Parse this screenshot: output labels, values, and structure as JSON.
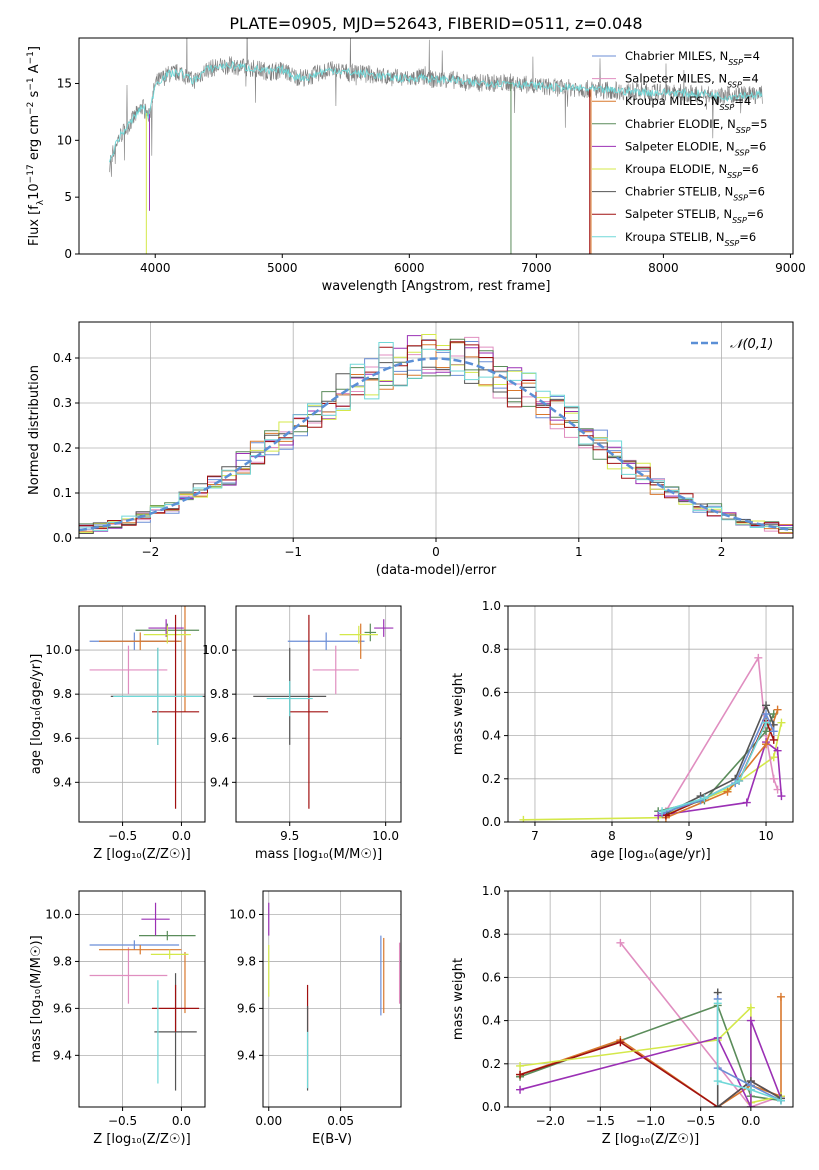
{
  "figure_title": "PLATE=0905, MJD=52643, FIBERID=0511, z=0.048",
  "colors": {
    "chabrier_miles": "#6b8ed6",
    "salpeter_miles": "#e08ec0",
    "kroupa_miles": "#d9782d",
    "chabrier_elodie": "#5a8c5a",
    "salpeter_elodie": "#9b30b5",
    "kroupa_elodie": "#d4e84a",
    "chabrier_stelib": "#555555",
    "salpeter_stelib": "#a01010",
    "kroupa_stelib": "#70d8d8",
    "gauss": "#5b8fd6",
    "grid": "#b0b0b0"
  },
  "chart_data": [
    {
      "id": "spectrum",
      "type": "line",
      "xlabel": "wavelength [Angstrom, rest frame]",
      "ylabel_parts": [
        "Flux [f",
        "λ",
        "10",
        "−17",
        " erg cm",
        "−2",
        " s",
        "−1",
        " A",
        "−1",
        "]"
      ],
      "xlim": [
        3400,
        9020
      ],
      "ylim": [
        0,
        19
      ],
      "xticks": [
        4000,
        5000,
        6000,
        7000,
        8000,
        9000
      ],
      "yticks": [
        0,
        5,
        10,
        15
      ],
      "legend_position": "right",
      "legend": [
        {
          "name": "Chabrier MILES, N",
          "sub": "SSP",
          "tail": "=4",
          "color_key": "chabrier_miles"
        },
        {
          "name": "Salpeter MILES, N",
          "sub": "SSP",
          "tail": "=4",
          "color_key": "salpeter_miles"
        },
        {
          "name": "Kroupa MILES, N",
          "sub": "SSP",
          "tail": "=4",
          "color_key": "kroupa_miles"
        },
        {
          "name": "Chabrier ELODIE, N",
          "sub": "SSP",
          "tail": "=5",
          "color_key": "chabrier_elodie"
        },
        {
          "name": "Salpeter ELODIE, N",
          "sub": "SSP",
          "tail": "=6",
          "color_key": "salpeter_elodie"
        },
        {
          "name": "Kroupa ELODIE, N",
          "sub": "SSP",
          "tail": "=6",
          "color_key": "kroupa_elodie"
        },
        {
          "name": "Chabrier STELIB, N",
          "sub": "SSP",
          "tail": "=6",
          "color_key": "chabrier_stelib"
        },
        {
          "name": "Salpeter STELIB, N",
          "sub": "SSP",
          "tail": "=6",
          "color_key": "salpeter_stelib"
        },
        {
          "name": "Kroupa STELIB, N",
          "sub": "SSP",
          "tail": "=6",
          "color_key": "kroupa_stelib"
        }
      ],
      "data_continuum": [
        [
          3640,
          8.0
        ],
        [
          3700,
          10.0
        ],
        [
          3800,
          11.5
        ],
        [
          3900,
          13.0
        ],
        [
          3950,
          12.0
        ],
        [
          4000,
          15.0
        ],
        [
          4100,
          15.8
        ],
        [
          4200,
          16.0
        ],
        [
          4300,
          15.2
        ],
        [
          4400,
          16.2
        ],
        [
          4500,
          16.5
        ],
        [
          4600,
          16.6
        ],
        [
          4700,
          16.4
        ],
        [
          4800,
          16.3
        ],
        [
          4900,
          16.0
        ],
        [
          5000,
          16.2
        ],
        [
          5100,
          15.6
        ],
        [
          5200,
          15.5
        ],
        [
          5300,
          16.0
        ],
        [
          5400,
          16.2
        ],
        [
          5500,
          16.0
        ],
        [
          5600,
          15.9
        ],
        [
          5700,
          15.8
        ],
        [
          5800,
          15.6
        ],
        [
          5900,
          15.5
        ],
        [
          6000,
          15.4
        ],
        [
          6100,
          15.6
        ],
        [
          6200,
          15.3
        ],
        [
          6300,
          15.4
        ],
        [
          6400,
          15.2
        ],
        [
          6500,
          15.0
        ],
        [
          6600,
          15.1
        ],
        [
          6700,
          15.0
        ],
        [
          6800,
          15.1
        ],
        [
          6900,
          14.9
        ],
        [
          7000,
          14.8
        ],
        [
          7100,
          14.7
        ],
        [
          7200,
          14.6
        ],
        [
          7300,
          14.6
        ],
        [
          7400,
          14.5
        ],
        [
          7500,
          14.4
        ],
        [
          7600,
          14.4
        ],
        [
          7700,
          14.3
        ],
        [
          7800,
          14.3
        ],
        [
          7900,
          14.2
        ],
        [
          8000,
          14.2
        ],
        [
          8100,
          14.2
        ],
        [
          8200,
          14.1
        ],
        [
          8300,
          14.1
        ],
        [
          8400,
          14.0
        ],
        [
          8500,
          13.8
        ],
        [
          8600,
          14.0
        ],
        [
          8700,
          14.0
        ],
        [
          8780,
          14.0
        ]
      ],
      "data_ends": {
        "kroupa_elodie": 3930,
        "salpeter_elodie": 3955,
        "chabrier_elodie": 6800,
        "salpeter_stelib": 7420,
        "kroupa_miles": 7430
      }
    },
    {
      "id": "residual_hist",
      "type": "line",
      "xlabel": "(data-model)/error",
      "ylabel": "Normed distribution",
      "xlim": [
        -2.5,
        2.5
      ],
      "ylim": [
        0,
        0.48
      ],
      "xticks": [
        -2,
        -1,
        0,
        1,
        2
      ],
      "yticks": [
        0.0,
        0.1,
        0.2,
        0.3,
        0.4
      ],
      "legend_position": "top-right",
      "gauss_label": "𝒩(0,1)",
      "bin_width": 0.1,
      "bin_start": -2.5
    },
    {
      "id": "age_vs_Z",
      "type": "scatter",
      "xlabel": "Z [log₁₀(Z/Z☉)]",
      "ylabel": "age  [log₁₀(age/yr)]",
      "xlim": [
        -0.87,
        0.2
      ],
      "ylim": [
        9.22,
        10.2
      ],
      "xticks": [
        -0.5,
        0.0
      ],
      "yticks": [
        9.4,
        9.6,
        9.8,
        10.0
      ],
      "points": [
        {
          "color_key": "chabrier_miles",
          "x": -0.4,
          "xerr": 0.38,
          "y": 10.04,
          "yerr": 0.04
        },
        {
          "color_key": "salpeter_miles",
          "x": -0.45,
          "xerr": 0.33,
          "y": 9.91,
          "yerr": 0.11
        },
        {
          "color_key": "kroupa_miles",
          "x": -0.35,
          "xerr": 0.35,
          "y": 10.04,
          "yerr": 0.04
        },
        {
          "color_key": "kroupa_miles",
          "x": 0.03,
          "xerr": 0.0,
          "y": 9.98,
          "yerr": 0.26
        },
        {
          "color_key": "chabrier_elodie",
          "x": -0.12,
          "xerr": 0.27,
          "y": 10.09,
          "yerr": 0.03
        },
        {
          "color_key": "salpeter_elodie",
          "x": -0.13,
          "xerr": 0.15,
          "y": 10.1,
          "yerr": 0.04
        },
        {
          "color_key": "kroupa_elodie",
          "x": -0.12,
          "xerr": 0.2,
          "y": 10.07,
          "yerr": 0.04
        },
        {
          "color_key": "chabrier_stelib",
          "x": -0.2,
          "xerr": 0.4,
          "y": 9.79,
          "yerr": 0.22
        },
        {
          "color_key": "salpeter_stelib",
          "x": -0.05,
          "xerr": 0.2,
          "y": 9.72,
          "yerr": 0.44
        },
        {
          "color_key": "kroupa_stelib",
          "x": -0.2,
          "xerr": 0.38,
          "y": 9.79,
          "yerr": 0.22
        }
      ]
    },
    {
      "id": "age_vs_mass",
      "type": "scatter",
      "xlabel": "mass [log₁₀(M/M☉)]",
      "ylabel": "",
      "xlim": [
        9.22,
        10.08
      ],
      "ylim": [
        9.22,
        10.2
      ],
      "xticks": [
        9.5,
        10.0
      ],
      "yticks": [
        9.4,
        9.6,
        9.8,
        10.0
      ],
      "points": [
        {
          "color_key": "chabrier_miles",
          "x": 9.69,
          "xerr": 0.2,
          "y": 10.04,
          "yerr": 0.04
        },
        {
          "color_key": "salpeter_miles",
          "x": 9.74,
          "xerr": 0.12,
          "y": 9.91,
          "yerr": 0.11
        },
        {
          "color_key": "kroupa_miles",
          "x": 9.87,
          "xerr": 0.0,
          "y": 10.04,
          "yerr": 0.08
        },
        {
          "color_key": "chabrier_elodie",
          "x": 9.92,
          "xerr": 0.03,
          "y": 10.08,
          "yerr": 0.04
        },
        {
          "color_key": "salpeter_elodie",
          "x": 9.99,
          "xerr": 0.05,
          "y": 10.1,
          "yerr": 0.04
        },
        {
          "color_key": "kroupa_elodie",
          "x": 9.86,
          "xerr": 0.1,
          "y": 10.07,
          "yerr": 0.04
        },
        {
          "color_key": "chabrier_stelib",
          "x": 9.5,
          "xerr": 0.19,
          "y": 9.79,
          "yerr": 0.22
        },
        {
          "color_key": "salpeter_stelib",
          "x": 9.6,
          "xerr": 0.1,
          "y": 9.72,
          "yerr": 0.44
        },
        {
          "color_key": "kroupa_stelib",
          "x": 9.5,
          "xerr": 0.12,
          "y": 9.78,
          "yerr": 0.08
        }
      ]
    },
    {
      "id": "weight_vs_age",
      "type": "line",
      "xlabel": "age  [log₁₀(age/yr)]",
      "ylabel": "mass weight",
      "xlim": [
        6.65,
        10.35
      ],
      "ylim": [
        0,
        1.0
      ],
      "xticks": [
        7,
        8,
        9,
        10
      ],
      "yticks": [
        0.0,
        0.2,
        0.4,
        0.6,
        0.8,
        1.0
      ],
      "series": [
        {
          "color_key": "kroupa_elodie",
          "x": [
            6.85,
            8.6,
            9.5,
            10.1,
            10.2
          ],
          "y": [
            0.01,
            0.02,
            0.15,
            0.3,
            0.46
          ]
        },
        {
          "color_key": "salpeter_miles",
          "x": [
            8.7,
            9.9,
            10.0,
            10.1,
            10.15
          ],
          "y": [
            0.05,
            0.76,
            0.4,
            0.2,
            0.15
          ]
        },
        {
          "color_key": "chabrier_elodie",
          "x": [
            8.6,
            9.2,
            10.0,
            10.1
          ],
          "y": [
            0.05,
            0.1,
            0.42,
            0.5
          ]
        },
        {
          "color_key": "salpeter_elodie",
          "x": [
            8.6,
            9.75,
            10.0,
            10.15,
            10.2
          ],
          "y": [
            0.03,
            0.09,
            0.37,
            0.33,
            0.12
          ]
        },
        {
          "color_key": "kroupa_miles",
          "x": [
            8.7,
            9.5,
            10.0,
            10.15
          ],
          "y": [
            0.02,
            0.14,
            0.36,
            0.52
          ]
        },
        {
          "color_key": "chabrier_stelib",
          "x": [
            8.7,
            9.15,
            9.6,
            10.0,
            10.1
          ],
          "y": [
            0.04,
            0.12,
            0.2,
            0.54,
            0.45
          ]
        },
        {
          "color_key": "salpeter_stelib",
          "x": [
            8.7,
            9.2,
            9.65,
            10.0,
            10.1
          ],
          "y": [
            0.03,
            0.11,
            0.19,
            0.47,
            0.38
          ]
        },
        {
          "color_key": "chabrier_miles",
          "x": [
            8.65,
            9.15,
            9.6,
            10.0,
            10.1
          ],
          "y": [
            0.04,
            0.1,
            0.18,
            0.5,
            0.42
          ]
        },
        {
          "color_key": "kroupa_stelib",
          "x": [
            8.65,
            9.2,
            9.65,
            10.0
          ],
          "y": [
            0.05,
            0.11,
            0.19,
            0.46
          ]
        }
      ]
    },
    {
      "id": "mass_vs_Z",
      "type": "scatter",
      "xlabel": "Z [log₁₀(Z/Z☉)]",
      "ylabel": "mass [log₁₀(M/M☉)]",
      "xlim": [
        -0.87,
        0.2
      ],
      "ylim": [
        9.18,
        10.1
      ],
      "xticks": [
        -0.5,
        0.0
      ],
      "yticks": [
        9.4,
        9.6,
        9.8,
        10.0
      ],
      "points": [
        {
          "color_key": "chabrier_miles",
          "x": -0.4,
          "xerr": 0.38,
          "y": 9.87,
          "yerr": 0.02
        },
        {
          "color_key": "salpeter_miles",
          "x": -0.45,
          "xerr": 0.33,
          "y": 9.74,
          "yerr": 0.12
        },
        {
          "color_key": "kroupa_miles",
          "x": -0.35,
          "xerr": 0.35,
          "y": 9.85,
          "yerr": 0.02
        },
        {
          "color_key": "kroupa_miles",
          "x": 0.03,
          "xerr": 0.0,
          "y": 9.71,
          "yerr": 0.13
        },
        {
          "color_key": "chabrier_elodie",
          "x": -0.12,
          "xerr": 0.24,
          "y": 9.91,
          "yerr": 0.02
        },
        {
          "color_key": "salpeter_elodie",
          "x": -0.22,
          "xerr": 0.12,
          "y": 9.98,
          "yerr": 0.07
        },
        {
          "color_key": "kroupa_elodie",
          "x": -0.1,
          "xerr": 0.16,
          "y": 9.83,
          "yerr": 0.02
        },
        {
          "color_key": "chabrier_stelib",
          "x": -0.05,
          "xerr": 0.18,
          "y": 9.5,
          "yerr": 0.25
        },
        {
          "color_key": "salpeter_stelib",
          "x": -0.05,
          "xerr": 0.2,
          "y": 9.6,
          "yerr": 0.1
        },
        {
          "color_key": "kroupa_stelib",
          "x": -0.2,
          "xerr": 0.0,
          "y": 9.5,
          "yerr": 0.22
        }
      ]
    },
    {
      "id": "mass_vs_EBV",
      "type": "scatter",
      "xlabel": "E(B-V)",
      "ylabel": "",
      "xlim": [
        -0.004,
        0.092
      ],
      "ylim": [
        9.18,
        10.1
      ],
      "xticks": [
        0.0,
        0.05
      ],
      "yticks": [
        9.4,
        9.6,
        9.8,
        10.0
      ],
      "points": [
        {
          "color_key": "salpeter_elodie",
          "x": 0.0,
          "yerr": 0.07,
          "y": 9.98
        },
        {
          "color_key": "kroupa_elodie",
          "x": 0.0,
          "yerr": 0.11,
          "y": 9.76
        },
        {
          "color_key": "salpeter_stelib",
          "x": 0.027,
          "yerr": 0.1,
          "y": 9.6
        },
        {
          "color_key": "chabrier_stelib",
          "x": 0.027,
          "yerr": 0.18,
          "y": 9.43
        },
        {
          "color_key": "kroupa_stelib",
          "x": 0.027,
          "yerr": 0.12,
          "y": 9.38
        },
        {
          "color_key": "chabrier_miles",
          "x": 0.078,
          "yerr": 0.17,
          "y": 9.74
        },
        {
          "color_key": "kroupa_miles",
          "x": 0.08,
          "yerr": 0.16,
          "y": 9.74
        },
        {
          "color_key": "salpeter_miles",
          "x": 0.091,
          "yerr": 0.13,
          "y": 9.75
        }
      ]
    },
    {
      "id": "weight_vs_Z",
      "type": "line",
      "xlabel": "Z [log₁₀(Z/Z☉)]",
      "ylabel": "mass weight",
      "xlim": [
        -2.42,
        0.42
      ],
      "ylim": [
        0,
        1.0
      ],
      "xticks": [
        -2.0,
        -1.5,
        -1.0,
        -0.5,
        0.0
      ],
      "yticks": [
        0.0,
        0.2,
        0.4,
        0.6,
        0.8,
        1.0
      ],
      "series": [
        {
          "color_key": "salpeter_miles",
          "x": [
            -1.3,
            0.0,
            0.3
          ],
          "y": [
            0.76,
            0.0,
            0.05
          ]
        },
        {
          "color_key": "chabrier_elodie",
          "x": [
            -2.3,
            -0.33,
            0.0,
            0.3
          ],
          "y": [
            0.14,
            0.47,
            0.05,
            0.03
          ]
        },
        {
          "color_key": "kroupa_miles",
          "x": [
            -2.3,
            -1.3,
            -0.33,
            0.0,
            0.3,
            0.3
          ],
          "y": [
            0.15,
            0.31,
            0.0,
            0.1,
            0.05,
            0.51
          ]
        },
        {
          "color_key": "salpeter_stelib",
          "x": [
            -2.3,
            -1.3,
            -0.33,
            0.0,
            0.3
          ],
          "y": [
            0.15,
            0.3,
            0.0,
            0.12,
            0.04
          ]
        },
        {
          "color_key": "kroupa_elodie",
          "x": [
            -2.3,
            -0.33,
            0.0,
            0.0,
            0.3
          ],
          "y": [
            0.19,
            0.31,
            0.46,
            0.02,
            0.05
          ]
        },
        {
          "color_key": "salpeter_elodie",
          "x": [
            -2.3,
            -0.33,
            0.0,
            0.0,
            0.3
          ],
          "y": [
            0.08,
            0.32,
            0.0,
            0.4,
            0.04
          ]
        },
        {
          "color_key": "chabrier_stelib",
          "x": [
            -0.33,
            -0.33,
            0.0,
            0.3
          ],
          "y": [
            0.53,
            0.0,
            0.12,
            0.04
          ]
        },
        {
          "color_key": "chabrier_miles",
          "x": [
            -0.33,
            -0.33,
            0.0,
            0.3
          ],
          "y": [
            0.5,
            0.18,
            0.1,
            0.03
          ]
        },
        {
          "color_key": "kroupa_stelib",
          "x": [
            -0.33,
            -0.33,
            0.0,
            0.3
          ],
          "y": [
            0.48,
            0.12,
            0.08,
            0.03
          ]
        }
      ]
    }
  ]
}
